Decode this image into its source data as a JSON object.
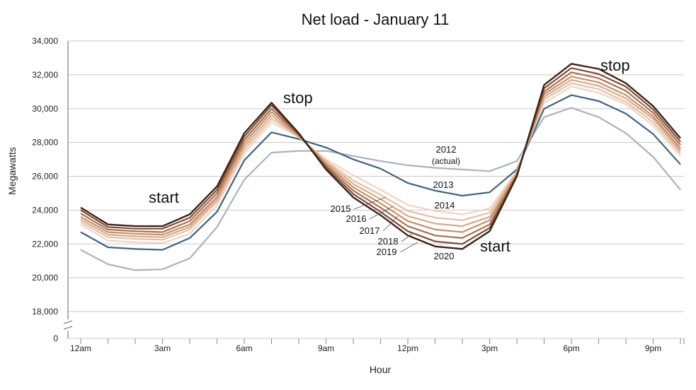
{
  "chart_data": {
    "type": "line",
    "title": "Net load - January 11",
    "xlabel": "Hour",
    "ylabel": "Megawatts",
    "ylim": [
      18000,
      34000
    ],
    "yticks": [
      18000,
      20000,
      22000,
      24000,
      26000,
      28000,
      30000,
      32000,
      34000
    ],
    "ytick_labels": [
      "18,000",
      "20,000",
      "22,000",
      "24,000",
      "26,000",
      "28,000",
      "30,000",
      "32,000",
      "34,000"
    ],
    "y_zero_label": "0",
    "xtick_labels": [
      "12am",
      "3am",
      "6am",
      "9am",
      "12pm",
      "3pm",
      "6pm",
      "9pm"
    ],
    "xtick_hours": [
      0,
      3,
      6,
      9,
      12,
      15,
      18,
      21
    ],
    "x": [
      0,
      1,
      2,
      3,
      4,
      5,
      6,
      7,
      8,
      9,
      10,
      11,
      12,
      13,
      14,
      15,
      16,
      17,
      18,
      19,
      20,
      21,
      22,
      23
    ],
    "grid": true,
    "series": [
      {
        "name": "2012",
        "label_line2": "(actual)",
        "color": "#a9b3c0",
        "values": [
          21650,
          20800,
          20450,
          20500,
          21150,
          23000,
          25800,
          27400,
          27500,
          27500,
          27200,
          26900,
          26650,
          26500,
          26400,
          26300,
          26900,
          29500,
          30050,
          29500,
          28550,
          27150,
          25200,
          null
        ]
      },
      {
        "name": "2013",
        "color": "#3f6282",
        "values": [
          22700,
          21800,
          21700,
          21650,
          22350,
          23900,
          26950,
          28600,
          28200,
          27700,
          27000,
          26450,
          25600,
          25150,
          24850,
          25050,
          26400,
          30000,
          30800,
          30450,
          29700,
          28500,
          26700,
          null
        ]
      },
      {
        "name": "2014",
        "color": "#f2d3bf",
        "values": [
          23150,
          22200,
          22100,
          22050,
          22600,
          24300,
          27350,
          29200,
          28300,
          27000,
          26050,
          25200,
          24300,
          23950,
          23750,
          24100,
          26300,
          30350,
          31300,
          30950,
          30250,
          29000,
          27200,
          null
        ]
      },
      {
        "name": "2015",
        "color": "#e6bfa3",
        "values": [
          23300,
          22400,
          22300,
          22250,
          22850,
          24500,
          27550,
          29400,
          28350,
          26900,
          25750,
          24900,
          23950,
          23550,
          23400,
          23850,
          26250,
          30550,
          31500,
          31150,
          30400,
          29200,
          27350,
          null
        ]
      },
      {
        "name": "2016",
        "color": "#d9a887",
        "values": [
          23450,
          22550,
          22450,
          22400,
          23000,
          24650,
          27750,
          29600,
          28350,
          26800,
          25550,
          24650,
          23650,
          23200,
          23050,
          23600,
          26200,
          30700,
          31700,
          31350,
          30600,
          29400,
          27500,
          null
        ]
      },
      {
        "name": "2017",
        "color": "#c68f6c",
        "values": [
          23600,
          22700,
          22600,
          22550,
          23150,
          24800,
          27950,
          29800,
          28400,
          26700,
          25350,
          24400,
          23350,
          22850,
          22700,
          23400,
          26150,
          30850,
          31900,
          31550,
          30800,
          29550,
          27650,
          null
        ]
      },
      {
        "name": "2018",
        "color": "#a86f4f",
        "values": [
          23800,
          22850,
          22750,
          22700,
          23350,
          25000,
          28150,
          30000,
          28450,
          26600,
          25150,
          24150,
          23050,
          22500,
          22350,
          23150,
          26100,
          31000,
          32150,
          31800,
          31050,
          29750,
          27850,
          null
        ]
      },
      {
        "name": "2019",
        "color": "#7e4d35",
        "values": [
          24000,
          23000,
          22900,
          22900,
          23550,
          25200,
          28350,
          30200,
          28500,
          26500,
          24950,
          23900,
          22750,
          22150,
          22000,
          22950,
          26050,
          31200,
          32400,
          32050,
          31300,
          29950,
          28050,
          null
        ]
      },
      {
        "name": "2020",
        "color": "#3a2418",
        "values": [
          24150,
          23150,
          23050,
          23050,
          23750,
          25400,
          28550,
          30350,
          28550,
          26400,
          24750,
          23700,
          22500,
          21850,
          21700,
          22750,
          26000,
          31400,
          32650,
          32350,
          31500,
          30150,
          28250,
          null
        ]
      }
    ],
    "annotations": {
      "start_left": "start",
      "stop_left": "stop",
      "start_right": "start",
      "stop_right": "stop"
    }
  }
}
